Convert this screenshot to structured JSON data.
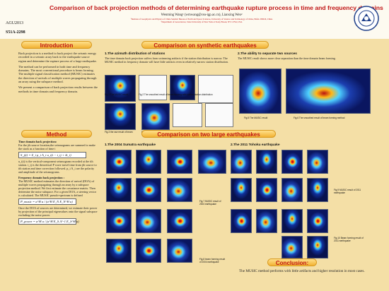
{
  "header": {
    "title": "Comparison of back projection methods of determining earthquake rupture process in time and frequency domains",
    "authors": "Wenming Wang¹ (wmwang@cea-igp.ac.cn), Lianxing Wen²",
    "affiliation_1": "¹Institute of Geophysics and Physics of China Seismic Bureau of Earth and Space Sciences, University of Science and Technology of China, Hefei 230026, China",
    "affiliation_2": "²Department of Geosciences, State University of New York at Stony Brook, NY 11794, USA",
    "meeting": "AGU2013",
    "session_code": "S51A-2298",
    "logo": "university-seal"
  },
  "sections": {
    "introduction": "Introduction",
    "synthetic": "Comparison on synthetic earthquakes",
    "method": "Method",
    "large": "Comparison on two large earthquakes",
    "conclusion": "Conclusion:"
  },
  "introduction": {
    "p1": "Back projection is a method to back project the seismic energy recorded in a seismic array back to the earthquake source region and determine the rupture process of a large earthquake.",
    "p2": "The method can be performed in both time and frequency domains. The most conventional procedure is beam forming. The multiple signal classification method (MUSIC) estimates the direction of arrivals of multiple waves propagating through an array using the subspace method.",
    "p3": "We present a comparison of back projection results between the methods in time domain and frequency domain."
  },
  "synthetic": {
    "h1": "1.The azimuth distribution of stations",
    "t1": "The time domain back projection suffers from swimming artifacts if the station distribution is narrow. The MUSIC method in frequency domain will have little artifacts even in relatively narrow station distribution.",
    "h2": "2.The ability to separate two sources",
    "t2": "The MUSIC result shows more clear separation than the time domain beam forming.",
    "cap1": "Fig.1 The MUSIC result",
    "cap2": "Fig.2 The smoothed result of beam forming with narrow station distribution",
    "cap3": "Fig.3 the raw result of beam",
    "cap4": "Fig.4 The smoothed result of beam forming with broad station distribution",
    "cap5": "Fig.5 The MUSIC result",
    "cap6": "Fig.6 The smoothed result of beam forming method"
  },
  "method": {
    "h1": "Time domain back projection:",
    "p1": "For the jth source location,the seismograms are summed to make the stack as a function of time t",
    "eq1": "S_j(t) = Σ_i p_i A_i u_i(t − t_ij + δt_i)",
    "p2": "u_i(t) is the vertical-component seismogram recorded at the ith station. t_ij is the theoretical P wave travel time from jth source to ith station and time correction followed. p_i A_i are the polarity and amplitude of the seismograms.",
    "h2": "Frequency domain back projection :",
    "p3": "The MUSIC method estimates the direction of arrival (DOA) of multiple waves propagating through an array by a subspace projection method. We first estimate the covariance matrix. Then determine the noise subspace. For a given DOA, a steering vector is calculated. The MUSIC pseudo-spectrum is defined",
    "eq2": "P_music = a^H a / (a^H E_N E_N^H a)",
    "p4": "Once the DOA of sources are determined, we estimate their power by projection of the principal eigenvalues onto the signal subspace excluding the noise power.",
    "eq3": "P_power = a^H a / (a^H E_S Λ^-1 E_S^H a)"
  },
  "large": {
    "h1": "1.The 2004 Sumatra earthquake",
    "h2": "2.The 2011 Tohoku earthquake",
    "cap7": "Fig.7 MUSIC result of 2004 earthquake",
    "cap8": "Fig.8 beam forming result of 2004 earthquake",
    "cap9": "Fig.9 MUSIC result of 2011 earthquake",
    "cap10": "Fig.10 Beam forming result of 2011 earthquake"
  },
  "conclusion": {
    "text": "The MUSIC method performs with little artifacts and higher resolution in most cases."
  },
  "colors": {
    "background": "#f4dfa6",
    "title": "#c01515",
    "banner": "#f2b233"
  }
}
